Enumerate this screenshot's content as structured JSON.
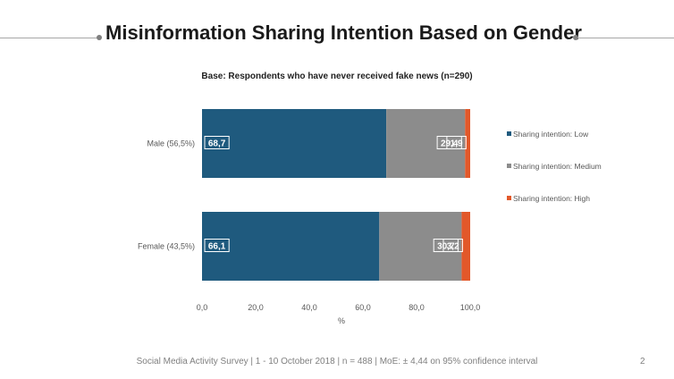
{
  "slide": {
    "title": "Misinformation Sharing Intention Based on Gender",
    "footer": "Social Media Activity Survey | 1 - 10 October 2018 | n = 488 | MoE: ± 4,44 on 95% confidence interval",
    "page_number": "2"
  },
  "chart_data": {
    "type": "bar",
    "orientation": "horizontal",
    "stacked": true,
    "subtitle": "Base: Respondents who have never received fake news (n=290)",
    "categories": [
      "Male (56,5%)",
      "Female (43,5%)"
    ],
    "series": [
      {
        "name": "Sharing intention: Low",
        "values": [
          68.7,
          66.1
        ],
        "labels": [
          "68,7",
          "66,1"
        ],
        "color": "#1f5a7e"
      },
      {
        "name": "Sharing intention: Medium",
        "values": [
          29.4,
          30.7
        ],
        "labels": [
          "29,4",
          "30,7"
        ],
        "color": "#8c8c8c"
      },
      {
        "name": "Sharing intention: High",
        "values": [
          1.9,
          3.2
        ],
        "labels": [
          "1,9",
          "3,2"
        ],
        "color": "#e2582a"
      }
    ],
    "xlim": [
      0,
      100
    ],
    "x_ticks": [
      "0,0",
      "20,0",
      "40,0",
      "60,0",
      "80,0",
      "100,0"
    ],
    "xlabel": "%",
    "grid": false,
    "legend_position": "right"
  }
}
